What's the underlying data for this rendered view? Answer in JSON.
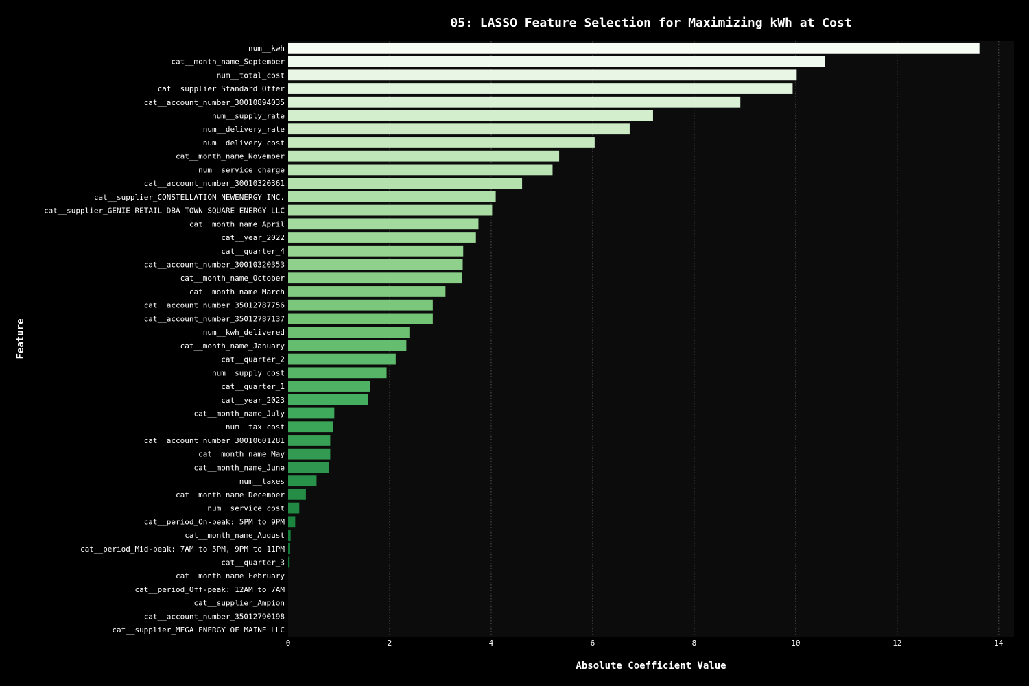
{
  "chart_data": {
    "type": "bar",
    "orientation": "horizontal",
    "title": "05: LASSO Feature Selection for Maximizing kWh at Cost",
    "xlabel": "Absolute Coefficient Value",
    "ylabel": "Feature",
    "xlim": [
      0,
      14.3
    ],
    "x_ticks": [
      0,
      2,
      4,
      6,
      8,
      10,
      12,
      14
    ],
    "grid": "vertical dotted",
    "colormap": "Greens (light = largest, dark = smallest)",
    "background": "#0c0c0c",
    "categories": [
      "num__kwh",
      "cat__month_name_September",
      "num__total_cost",
      "cat__supplier_Standard Offer",
      "cat__account_number_30010894035",
      "num__supply_rate",
      "num__delivery_rate",
      "num__delivery_cost",
      "cat__month_name_November",
      "num__service_charge",
      "cat__account_number_30010320361",
      "cat__supplier_CONSTELLATION NEWENERGY INC.",
      "cat__supplier_GENIE RETAIL DBA TOWN SQUARE ENERGY LLC",
      "cat__month_name_April",
      "cat__year_2022",
      "cat__quarter_4",
      "cat__account_number_30010320353",
      "cat__month_name_October",
      "cat__month_name_March",
      "cat__account_number_35012787756",
      "cat__account_number_35012787137",
      "num__kwh_delivered",
      "cat__month_name_January",
      "cat__quarter_2",
      "num__supply_cost",
      "cat__quarter_1",
      "cat__year_2023",
      "cat__month_name_July",
      "num__tax_cost",
      "cat__account_number_30010601281",
      "cat__month_name_May",
      "cat__month_name_June",
      "num__taxes",
      "cat__month_name_December",
      "num__service_cost",
      "cat__period_On-peak: 5PM to 9PM",
      "cat__month_name_August",
      "cat__period_Mid-peak: 7AM to 5PM, 9PM to 11PM",
      "cat__quarter_3",
      "cat__month_name_February",
      "cat__period_Off-peak: 12AM to 7AM",
      "cat__supplier_Ampion",
      "cat__account_number_35012790198",
      "cat__supplier_MEGA ENERGY OF MAINE LLC"
    ],
    "values": [
      13.62,
      10.58,
      10.02,
      9.94,
      8.91,
      7.19,
      6.73,
      6.04,
      5.34,
      5.21,
      4.61,
      4.09,
      4.02,
      3.75,
      3.7,
      3.45,
      3.44,
      3.43,
      3.1,
      2.85,
      2.85,
      2.39,
      2.33,
      2.12,
      1.94,
      1.62,
      1.58,
      0.91,
      0.89,
      0.83,
      0.83,
      0.81,
      0.56,
      0.35,
      0.22,
      0.14,
      0.05,
      0.04,
      0.03,
      0.0,
      0.0,
      0.0,
      0.0,
      0.0
    ]
  }
}
